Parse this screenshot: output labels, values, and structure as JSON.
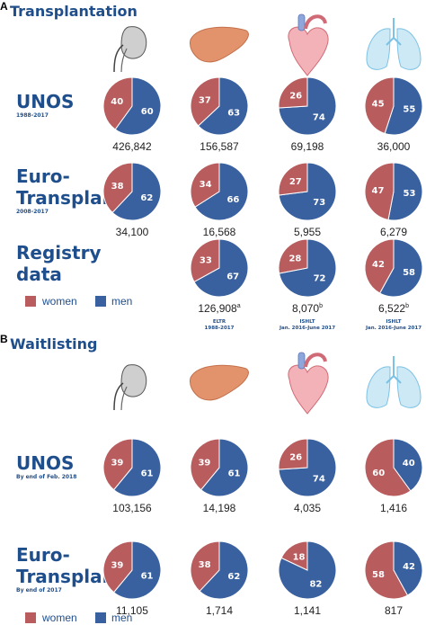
{
  "panels": [
    {
      "letter": "A",
      "title": "Transplantation",
      "organs": [
        "kidney-icon",
        "liver-icon",
        "heart-icon",
        "lungs-icon"
      ],
      "rows": [
        {
          "label_lines": [
            "UNOS"
          ],
          "sub": "1988-2017",
          "pies": [
            {
              "women": 40,
              "men": 60,
              "total": "426,842",
              "sup": ""
            },
            {
              "women": 37,
              "men": 63,
              "total": "156,587",
              "sup": ""
            },
            {
              "women": 26,
              "men": 74,
              "total": "69,198",
              "sup": ""
            },
            {
              "women": 45,
              "men": 55,
              "total": "36,000",
              "sup": ""
            }
          ]
        },
        {
          "label_lines": [
            "Euro-",
            "Transplant"
          ],
          "sub": "2008-2017",
          "pies": [
            {
              "women": 38,
              "men": 62,
              "total": "34,100",
              "sup": ""
            },
            {
              "women": 34,
              "men": 66,
              "total": "16,568",
              "sup": ""
            },
            {
              "women": 27,
              "men": 73,
              "total": "5,955",
              "sup": ""
            },
            {
              "women": 47,
              "men": 53,
              "total": "6,279",
              "sup": ""
            }
          ]
        },
        {
          "label_lines": [
            "Registry",
            "data"
          ],
          "sub": "",
          "pies": [
            null,
            {
              "women": 33,
              "men": 67,
              "total": "126,908",
              "sup": "a",
              "src1": "ELTR",
              "src2": "1988-2017"
            },
            {
              "women": 28,
              "men": 72,
              "total": "8,070",
              "sup": "b",
              "src1": "ISHLT",
              "src2": "Jan. 2016-June 2017"
            },
            {
              "women": 42,
              "men": 58,
              "total": "6,522",
              "sup": "b",
              "src1": "ISHLT",
              "src2": "Jan. 2016-June 2017"
            }
          ]
        }
      ],
      "legend": {
        "women": "women",
        "men": "men"
      }
    },
    {
      "letter": "B",
      "title": "Waitlisting",
      "organs": [
        "kidney-icon",
        "liver-icon",
        "heart-icon",
        "lungs-icon"
      ],
      "rows": [
        {
          "label_lines": [
            "UNOS"
          ],
          "sub": "By end of Feb. 2018",
          "pies": [
            {
              "women": 39,
              "men": 61,
              "total": "103,156",
              "sup": ""
            },
            {
              "women": 39,
              "men": 61,
              "total": "14,198",
              "sup": ""
            },
            {
              "women": 26,
              "men": 74,
              "total": "4,035",
              "sup": ""
            },
            {
              "women": 60,
              "men": 40,
              "total": "1,416",
              "sup": ""
            }
          ]
        },
        {
          "label_lines": [
            "Euro-",
            "Transplant"
          ],
          "sub": "By end of 2017",
          "pies": [
            {
              "women": 39,
              "men": 61,
              "total": "11,105",
              "sup": ""
            },
            {
              "women": 38,
              "men": 62,
              "total": "1,714",
              "sup": ""
            },
            {
              "women": 18,
              "men": 82,
              "total": "1,141",
              "sup": ""
            },
            {
              "women": 58,
              "men": 42,
              "total": "817",
              "sup": ""
            }
          ]
        }
      ],
      "legend": {
        "women": "women",
        "men": "men"
      }
    }
  ],
  "colors": {
    "women": "#b85c5e",
    "men": "#3a619f",
    "title": "#1f4e8c"
  },
  "chart_data": [
    {
      "type": "pie",
      "title": "Transplantation",
      "categories": [
        "Kidney",
        "Liver",
        "Heart",
        "Lung"
      ],
      "series_labels": [
        "women",
        "men"
      ],
      "groups": [
        {
          "name": "UNOS",
          "period": "1988-2017",
          "women": [
            40,
            37,
            26,
            45
          ],
          "men": [
            60,
            63,
            74,
            55
          ],
          "totals": [
            "426,842",
            "156,587",
            "69,198",
            "36,000"
          ]
        },
        {
          "name": "Euro-Transplant",
          "period": "2008-2017",
          "women": [
            38,
            34,
            27,
            47
          ],
          "men": [
            62,
            66,
            73,
            53
          ],
          "totals": [
            "34,100",
            "16,568",
            "5,955",
            "6,279"
          ]
        },
        {
          "name": "Registry data",
          "women": [
            null,
            33,
            28,
            42
          ],
          "men": [
            null,
            67,
            72,
            58
          ],
          "totals": [
            null,
            "126,908",
            "8,070",
            "6,522"
          ],
          "sources": [
            null,
            "ELTR 1988-2017",
            "ISHLT Jan. 2016-June 2017",
            "ISHLT Jan. 2016-June 2017"
          ]
        }
      ]
    },
    {
      "type": "pie",
      "title": "Waitlisting",
      "categories": [
        "Kidney",
        "Liver",
        "Heart",
        "Lung"
      ],
      "series_labels": [
        "women",
        "men"
      ],
      "groups": [
        {
          "name": "UNOS",
          "period": "By end of Feb. 2018",
          "women": [
            39,
            39,
            26,
            60
          ],
          "men": [
            61,
            61,
            74,
            40
          ],
          "totals": [
            "103,156",
            "14,198",
            "4,035",
            "1,416"
          ]
        },
        {
          "name": "Euro-Transplant",
          "period": "By end of 2017",
          "women": [
            39,
            38,
            18,
            58
          ],
          "men": [
            61,
            62,
            82,
            42
          ],
          "totals": [
            "11,105",
            "1,714",
            "1,141",
            "817"
          ]
        }
      ]
    }
  ]
}
